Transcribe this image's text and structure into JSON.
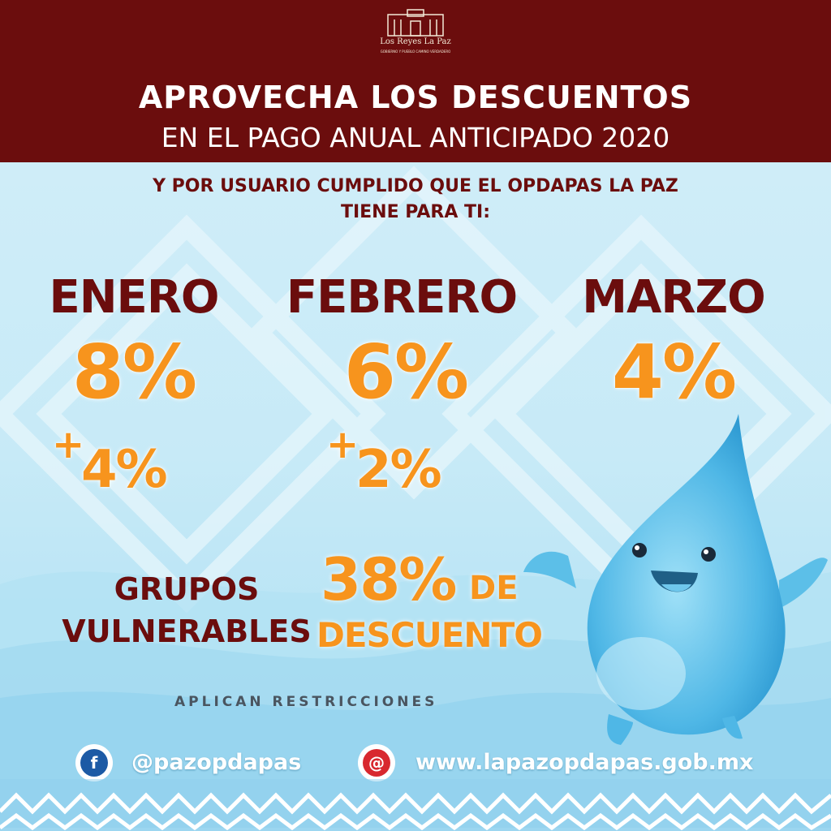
{
  "header": {
    "logo_title": "Los Reyes La Paz",
    "logo_subtitle": "GOBIERNO Y PUEBLO CAMINO VERDADERO",
    "title_line1": "APROVECHA LOS DESCUENTOS",
    "title_line2": "EN EL PAGO ANUAL ANTICIPADO 2020"
  },
  "subtitle": {
    "line1_prefix": "Y POR USUARIO CUMPLIDO QUE EL ",
    "line1_accent": "OPDAPAS LA PAZ",
    "line2": "TIENE PARA TI:"
  },
  "months": [
    {
      "name": "ENERO",
      "discount": "8%",
      "plus_sign": "+",
      "extra": "4%"
    },
    {
      "name": "FEBRERO",
      "discount": "6%",
      "plus_sign": "+",
      "extra": "2%"
    },
    {
      "name": "MARZO",
      "discount": "4%"
    }
  ],
  "vulnerable": {
    "label_line1": "GRUPOS",
    "label_line2": "VULNERABLES",
    "percent": "38%",
    "de": "DE",
    "descuento": "DESCUENTO"
  },
  "restrictions": "APLICAN RESTRICCIONES",
  "social": {
    "facebook_handle": "@pazopdapas",
    "website": "www.lapazopdapas.gob.mx",
    "facebook_glyph": "f",
    "email_glyph": "@"
  },
  "colors": {
    "header_bg": "#6b0d0d",
    "accent_orange": "#f7941d",
    "maroon_text": "#6b0d0d",
    "facebook_blue": "#1c5aa5",
    "email_red": "#d8282f"
  }
}
